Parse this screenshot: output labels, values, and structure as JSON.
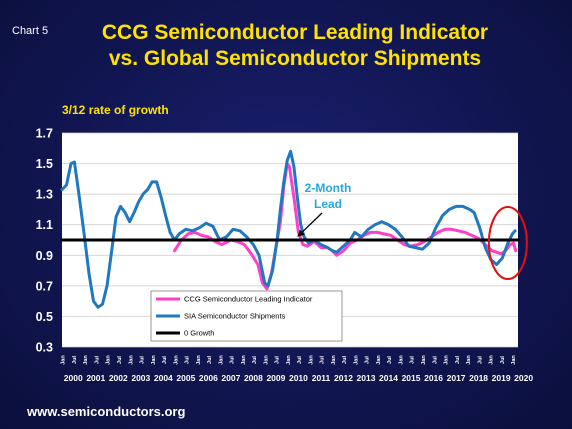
{
  "slide": {
    "chart_label": "Chart 5",
    "title_line1": "CCG Semiconductor Leading Indicator",
    "title_line2": "vs. Global Semiconductor Shipments",
    "footer": "www.semiconductors.org"
  },
  "colors": {
    "background": "#10154f",
    "title": "#ffe200",
    "ccg_series": "#ff3fc8",
    "sia_series": "#1f78c0",
    "zero_growth": "#000000",
    "annotation": "#2aa6e0",
    "highlight_circle": "#e01010"
  },
  "chart_data": {
    "type": "line",
    "title": "CCG Semiconductor Leading Indicator vs. Global Semiconductor Shipments",
    "ylabel": "3/12 rate of growth",
    "ylim": [
      0.3,
      1.7
    ],
    "yticks": [
      "1.7",
      "1.5",
      "1.3",
      "1.1",
      "0.9",
      "0.7",
      "0.5",
      "0.3"
    ],
    "xlim": [
      2000.0,
      2020.25
    ],
    "years": [
      "2000",
      "2001",
      "2002",
      "2003",
      "2004",
      "2005",
      "2006",
      "2007",
      "2008",
      "2009",
      "2010",
      "2011",
      "2012",
      "2013",
      "2014",
      "2015",
      "2016",
      "2017",
      "2018",
      "2019",
      "2020"
    ],
    "month_labels": [
      "Jan",
      "Jul"
    ],
    "grid": true,
    "legend_position": "bottom-left",
    "series": [
      {
        "name": "CCG Semiconductor Leading Indicator",
        "color": "#ff3fc8",
        "points": [
          [
            2005.0,
            0.93
          ],
          [
            2005.3,
            1.0
          ],
          [
            2005.6,
            1.04
          ],
          [
            2005.9,
            1.05
          ],
          [
            2006.2,
            1.03
          ],
          [
            2006.5,
            1.02
          ],
          [
            2006.8,
            0.99
          ],
          [
            2007.1,
            0.97
          ],
          [
            2007.5,
            1.0
          ],
          [
            2007.8,
            0.99
          ],
          [
            2008.1,
            0.97
          ],
          [
            2008.4,
            0.91
          ],
          [
            2008.7,
            0.84
          ],
          [
            2008.9,
            0.72
          ],
          [
            2009.1,
            0.68
          ],
          [
            2009.3,
            0.78
          ],
          [
            2009.5,
            0.95
          ],
          [
            2009.7,
            1.12
          ],
          [
            2009.85,
            1.35
          ],
          [
            2010.0,
            1.5
          ],
          [
            2010.1,
            1.48
          ],
          [
            2010.3,
            1.28
          ],
          [
            2010.5,
            1.05
          ],
          [
            2010.7,
            0.97
          ],
          [
            2010.9,
            0.96
          ],
          [
            2011.2,
            0.99
          ],
          [
            2011.5,
            0.95
          ],
          [
            2011.8,
            0.95
          ],
          [
            2012.0,
            0.93
          ],
          [
            2012.2,
            0.9
          ],
          [
            2012.5,
            0.93
          ],
          [
            2012.8,
            0.98
          ],
          [
            2013.1,
            1.0
          ],
          [
            2013.4,
            1.03
          ],
          [
            2013.7,
            1.05
          ],
          [
            2014.0,
            1.05
          ],
          [
            2014.3,
            1.04
          ],
          [
            2014.6,
            1.03
          ],
          [
            2014.9,
            1.0
          ],
          [
            2015.2,
            0.97
          ],
          [
            2015.5,
            0.96
          ],
          [
            2015.8,
            0.97
          ],
          [
            2016.1,
            0.99
          ],
          [
            2016.4,
            1.02
          ],
          [
            2016.7,
            1.05
          ],
          [
            2017.0,
            1.07
          ],
          [
            2017.3,
            1.07
          ],
          [
            2017.6,
            1.06
          ],
          [
            2017.9,
            1.05
          ],
          [
            2018.2,
            1.03
          ],
          [
            2018.5,
            1.01
          ],
          [
            2018.8,
            0.97
          ],
          [
            2019.1,
            0.93
          ],
          [
            2019.3,
            0.92
          ],
          [
            2019.5,
            0.91
          ],
          [
            2019.7,
            0.93
          ],
          [
            2019.9,
            0.97
          ],
          [
            2020.05,
            0.98
          ],
          [
            2020.15,
            0.93
          ]
        ]
      },
      {
        "name": "SIA Semiconductor Shipments",
        "color": "#1f78c0",
        "points": [
          [
            2000.0,
            1.33
          ],
          [
            2000.2,
            1.36
          ],
          [
            2000.4,
            1.5
          ],
          [
            2000.55,
            1.51
          ],
          [
            2000.75,
            1.3
          ],
          [
            2001.0,
            1.02
          ],
          [
            2001.2,
            0.78
          ],
          [
            2001.4,
            0.6
          ],
          [
            2001.6,
            0.56
          ],
          [
            2001.8,
            0.58
          ],
          [
            2002.0,
            0.7
          ],
          [
            2002.2,
            0.92
          ],
          [
            2002.4,
            1.15
          ],
          [
            2002.6,
            1.22
          ],
          [
            2002.8,
            1.18
          ],
          [
            2003.0,
            1.12
          ],
          [
            2003.2,
            1.18
          ],
          [
            2003.4,
            1.25
          ],
          [
            2003.6,
            1.3
          ],
          [
            2003.8,
            1.33
          ],
          [
            2004.0,
            1.38
          ],
          [
            2004.2,
            1.38
          ],
          [
            2004.4,
            1.28
          ],
          [
            2004.6,
            1.16
          ],
          [
            2004.8,
            1.05
          ],
          [
            2005.0,
            1.0
          ],
          [
            2005.2,
            1.04
          ],
          [
            2005.5,
            1.07
          ],
          [
            2005.8,
            1.06
          ],
          [
            2006.1,
            1.08
          ],
          [
            2006.4,
            1.11
          ],
          [
            2006.7,
            1.09
          ],
          [
            2007.0,
            1.0
          ],
          [
            2007.3,
            1.02
          ],
          [
            2007.6,
            1.07
          ],
          [
            2007.9,
            1.06
          ],
          [
            2008.2,
            1.02
          ],
          [
            2008.5,
            0.97
          ],
          [
            2008.75,
            0.9
          ],
          [
            2009.0,
            0.72
          ],
          [
            2009.15,
            0.7
          ],
          [
            2009.35,
            0.8
          ],
          [
            2009.55,
            1.0
          ],
          [
            2009.7,
            1.2
          ],
          [
            2009.85,
            1.38
          ],
          [
            2010.0,
            1.52
          ],
          [
            2010.15,
            1.58
          ],
          [
            2010.3,
            1.48
          ],
          [
            2010.45,
            1.28
          ],
          [
            2010.6,
            1.1
          ],
          [
            2010.75,
            1.02
          ],
          [
            2010.95,
            0.98
          ],
          [
            2011.2,
            1.0
          ],
          [
            2011.5,
            0.97
          ],
          [
            2011.8,
            0.95
          ],
          [
            2012.0,
            0.93
          ],
          [
            2012.2,
            0.92
          ],
          [
            2012.5,
            0.96
          ],
          [
            2012.8,
            1.0
          ],
          [
            2013.0,
            1.05
          ],
          [
            2013.3,
            1.02
          ],
          [
            2013.6,
            1.07
          ],
          [
            2013.9,
            1.1
          ],
          [
            2014.2,
            1.12
          ],
          [
            2014.5,
            1.1
          ],
          [
            2014.8,
            1.07
          ],
          [
            2015.1,
            1.02
          ],
          [
            2015.4,
            0.96
          ],
          [
            2015.7,
            0.95
          ],
          [
            2016.0,
            0.94
          ],
          [
            2016.3,
            0.98
          ],
          [
            2016.6,
            1.08
          ],
          [
            2016.9,
            1.16
          ],
          [
            2017.2,
            1.2
          ],
          [
            2017.5,
            1.22
          ],
          [
            2017.8,
            1.22
          ],
          [
            2018.1,
            1.2
          ],
          [
            2018.3,
            1.18
          ],
          [
            2018.55,
            1.08
          ],
          [
            2018.8,
            0.95
          ],
          [
            2019.05,
            0.87
          ],
          [
            2019.3,
            0.84
          ],
          [
            2019.55,
            0.88
          ],
          [
            2019.8,
            0.98
          ],
          [
            2020.0,
            1.04
          ],
          [
            2020.12,
            1.06
          ]
        ]
      },
      {
        "name": "0 Growth",
        "color": "#000000",
        "points": [
          [
            2000.0,
            1.0
          ],
          [
            2020.25,
            1.0
          ]
        ]
      }
    ],
    "annotations": [
      {
        "text_line1": "2-Month",
        "text_line2": "Lead",
        "arrow_to": [
          2010.45,
          1.02
        ]
      }
    ],
    "highlight": {
      "center": [
        2019.8,
        0.98
      ]
    }
  }
}
